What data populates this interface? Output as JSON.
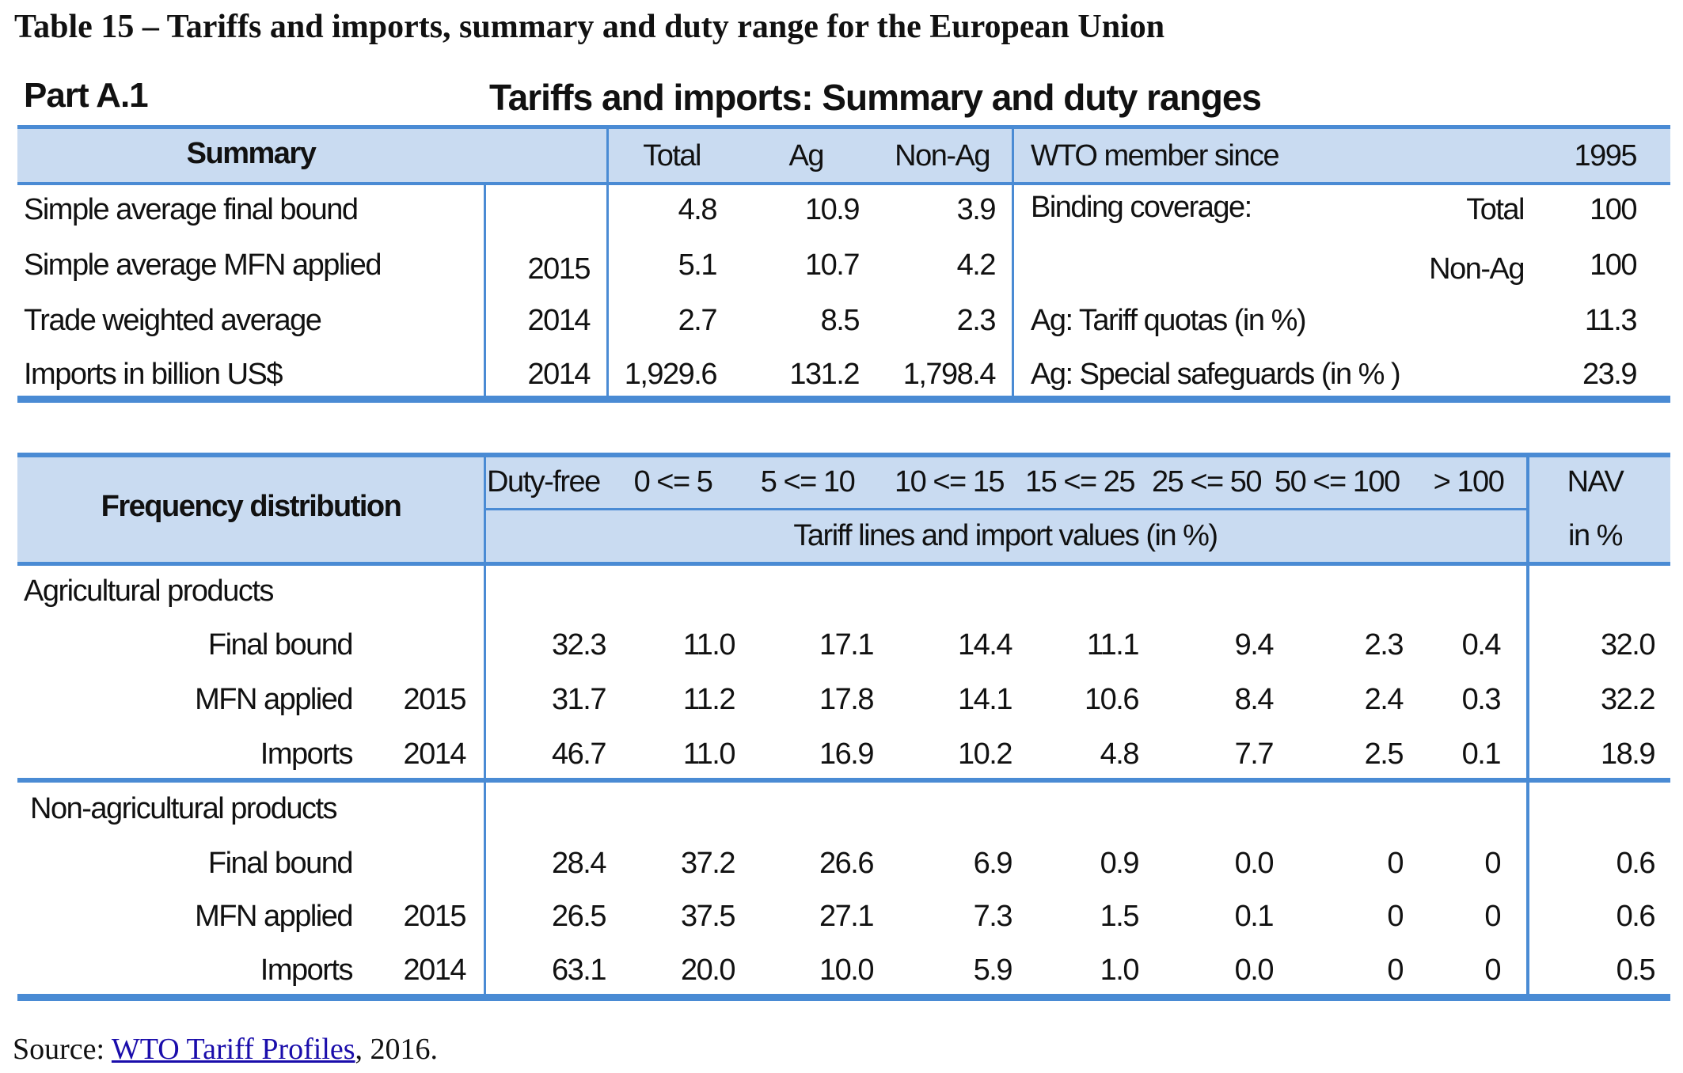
{
  "title": "Table 15 – Tariffs and imports, summary and duty range for the European Union",
  "part": {
    "label": "Part A.1",
    "title": "Tariffs and imports: Summary and duty ranges"
  },
  "summary": {
    "header": {
      "label": "Summary",
      "total": "Total",
      "ag": "Ag",
      "nonag": "Non-Ag"
    },
    "rows": [
      {
        "label": "Simple average final bound",
        "year": "",
        "total": "4.8",
        "ag": "10.9",
        "nonag": "3.9"
      },
      {
        "label": "Simple average MFN applied",
        "year": "2015",
        "total": "5.1",
        "ag": "10.7",
        "nonag": "4.2"
      },
      {
        "label": "Trade weighted average",
        "year": "2014",
        "total": "2.7",
        "ag": "8.5",
        "nonag": "2.3"
      },
      {
        "label": "Imports in billion US$",
        "year": "2014",
        "total": "1,929.6",
        "ag": "131.2",
        "nonag": "1,798.4"
      }
    ],
    "right": {
      "wto_label": "WTO member since",
      "wto_value": "1995",
      "binding_label": "Binding coverage:",
      "binding_total_label": "Total",
      "binding_total_value": "100",
      "binding_nonag_label": "Non-Ag",
      "binding_nonag_value": "100",
      "quota_label": "Ag: Tariff quotas  (in %)",
      "quota_value": "11.3",
      "safeguard_label": "Ag: Special safeguards (in % )",
      "safeguard_value": "23.9"
    }
  },
  "frequency": {
    "header": {
      "label": "Frequency distribution",
      "ranges": [
        "Duty-free",
        "0 <= 5",
        "5 <= 10",
        "10 <= 15",
        "15 <= 25",
        "25 <= 50",
        "50 <= 100",
        "> 100"
      ],
      "nav_line1": "NAV",
      "nav_line2": "in %",
      "subtitle": "Tariff lines and import values (in %)"
    },
    "groups": [
      {
        "name": "Agricultural products",
        "rows": [
          {
            "label": "Final bound",
            "year": "",
            "values": [
              "32.3",
              "11.0",
              "17.1",
              "14.4",
              "11.1",
              "9.4",
              "2.3",
              "0.4"
            ],
            "nav": "32.0"
          },
          {
            "label": "MFN applied",
            "year": "2015",
            "values": [
              "31.7",
              "11.2",
              "17.8",
              "14.1",
              "10.6",
              "8.4",
              "2.4",
              "0.3"
            ],
            "nav": "32.2"
          },
          {
            "label": "Imports",
            "year": "2014",
            "values": [
              "46.7",
              "11.0",
              "16.9",
              "10.2",
              "4.8",
              "7.7",
              "2.5",
              "0.1"
            ],
            "nav": "18.9"
          }
        ]
      },
      {
        "name": "Non-agricultural products",
        "rows": [
          {
            "label": "Final bound",
            "year": "",
            "values": [
              "28.4",
              "37.2",
              "26.6",
              "6.9",
              "0.9",
              "0.0",
              "0",
              "0"
            ],
            "nav": "0.6"
          },
          {
            "label": "MFN applied",
            "year": "2015",
            "values": [
              "26.5",
              "37.5",
              "27.1",
              "7.3",
              "1.5",
              "0.1",
              "0",
              "0"
            ],
            "nav": "0.6"
          },
          {
            "label": "Imports",
            "year": "2014",
            "values": [
              "63.1",
              "20.0",
              "10.0",
              "5.9",
              "1.0",
              "0.0",
              "0",
              "0"
            ],
            "nav": "0.5"
          }
        ]
      }
    ]
  },
  "source": {
    "prefix": "Source: ",
    "link_text": "WTO Tariff Profiles",
    "suffix": ", 2016."
  },
  "colors": {
    "band": "#c9dbf1",
    "rule": "#4a8bd4",
    "link": "#1a0dab"
  }
}
